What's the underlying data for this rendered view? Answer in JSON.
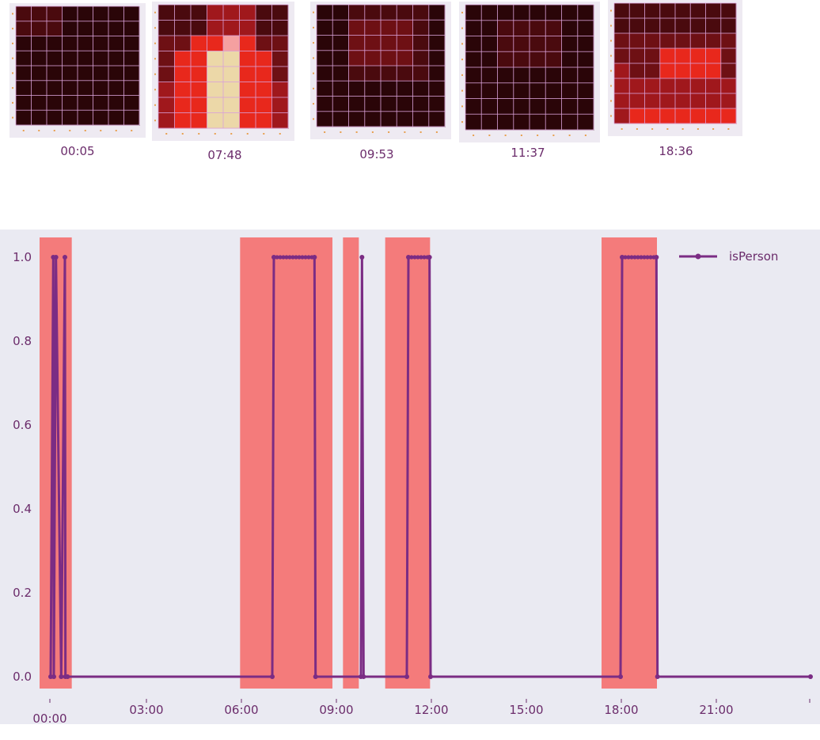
{
  "thumbnails": [
    {
      "label": "00:05"
    },
    {
      "label": "07:48"
    },
    {
      "label": "09:53"
    },
    {
      "label": "11:37"
    },
    {
      "label": "18:36"
    }
  ],
  "colors": {
    "line": "#7b2c84",
    "span": "#f47b7b",
    "plot_bg": "#eaeaf2",
    "tick_text": "#6b2c6b",
    "heat_dark": "#2a0508",
    "heat_mid": "#a0181c",
    "heat_hot": "#e8281c",
    "heat_peak": "#ecd8a8"
  },
  "chart_data": {
    "type": "line",
    "title": "",
    "xlabel": "",
    "ylabel": "",
    "xlim": [
      "00:00",
      "24:00"
    ],
    "ylim": [
      0,
      1
    ],
    "grid": false,
    "legend": {
      "position": "top-right",
      "entries": [
        "isPerson"
      ]
    },
    "x_ticks": [
      "00:00",
      "03:00",
      "06:00",
      "09:00",
      "12:00",
      "15:00",
      "18:00",
      "21:00"
    ],
    "y_ticks": [
      "0.0",
      "0.2",
      "0.4",
      "0.6",
      "0.8",
      "1.0"
    ],
    "series": [
      {
        "name": "isPerson",
        "x": [
          "00:00",
          "00:05",
          "00:06",
          "00:10",
          "00:20",
          "00:27",
          "00:28",
          "00:32",
          "07:00",
          "07:03",
          "08:20",
          "08:22",
          "09:48",
          "09:50",
          "09:53",
          "11:15",
          "11:18",
          "11:58",
          "12:00",
          "18:00",
          "18:03",
          "19:08",
          "19:10",
          "24:00"
        ],
        "values": [
          0,
          1,
          0,
          1,
          0,
          1,
          0,
          0,
          0,
          1,
          1,
          0,
          0,
          1,
          0,
          0,
          1,
          1,
          0,
          0,
          1,
          1,
          0,
          0
        ]
      }
    ],
    "highlight_spans": [
      {
        "start": "00:00",
        "end": "00:40"
      },
      {
        "start": "06:20",
        "end": "09:15"
      },
      {
        "start": "09:35",
        "end": "10:05"
      },
      {
        "start": "10:55",
        "end": "12:20"
      },
      {
        "start": "17:45",
        "end": "19:30"
      }
    ]
  }
}
